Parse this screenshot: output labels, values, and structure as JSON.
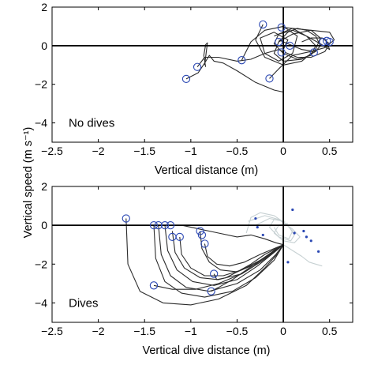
{
  "shared_ylabel": "Vertical speed (m s⁻¹)",
  "chart_data": [
    {
      "type": "line",
      "panel_label": "No dives",
      "xlabel": "Vertical distance (m)",
      "xlim": [
        -2.5,
        0.75
      ],
      "ylim": [
        -5,
        2
      ],
      "xticks": [
        -2.5,
        -2,
        -1.5,
        -1,
        -0.5,
        0,
        0.5
      ],
      "yticks": [
        -4,
        -2,
        0,
        2
      ],
      "xtick_labels": [
        "−2.5",
        "−2",
        "−1.5",
        "−1",
        "−0.5",
        "0",
        "0.5"
      ],
      "ytick_labels": [
        "−4",
        "−2",
        "0",
        "2"
      ],
      "reference_lines": {
        "x": 0,
        "y": 0
      },
      "trajectories": [
        {
          "x": [
            -1.05,
            -0.92,
            -0.85,
            -0.8,
            -0.75,
            -0.65,
            -0.5,
            -0.3,
            -0.1,
            0.0
          ],
          "y": [
            -1.72,
            -1.4,
            -0.9,
            -0.5,
            -0.8,
            -0.9,
            -1.3,
            -1.9,
            -2.3,
            -2.4
          ]
        },
        {
          "x": [
            -0.85,
            -0.83,
            -0.82,
            -0.84,
            -0.86,
            -0.84
          ],
          "y": [
            -1.0,
            -0.2,
            0.15,
            0.05,
            -0.5,
            -1.1
          ]
        },
        {
          "x": [
            -0.93,
            -0.85,
            -0.7,
            -0.5,
            -0.35,
            -0.2,
            -0.05,
            0.0
          ],
          "y": [
            -1.1,
            -0.6,
            -0.6,
            -0.8,
            -0.7,
            -0.4,
            -0.2,
            -0.3
          ]
        },
        {
          "x": [
            -0.45,
            -0.35,
            -0.2,
            0.0,
            0.15,
            0.1,
            -0.05,
            -0.2,
            -0.25,
            -0.1,
            0.05,
            0.0
          ],
          "y": [
            -0.75,
            0.2,
            0.8,
            1.0,
            0.5,
            -0.4,
            -0.8,
            -0.4,
            0.4,
            0.7,
            0.3,
            -0.2
          ]
        },
        {
          "x": [
            -0.22,
            -0.3,
            -0.2,
            0.0,
            0.2,
            0.35,
            0.4,
            0.3,
            0.1,
            -0.1
          ],
          "y": [
            1.1,
            0.3,
            -0.6,
            -1.0,
            -0.8,
            -0.2,
            0.4,
            0.8,
            0.9,
            0.5
          ]
        },
        {
          "x": [
            -0.15,
            -0.05,
            0.1,
            0.3,
            0.45,
            0.55,
            0.5,
            0.3,
            0.1,
            -0.05,
            -0.1,
            0.0,
            0.2,
            0.35
          ],
          "y": [
            -1.7,
            -1.2,
            -0.5,
            -0.3,
            -0.1,
            0.3,
            0.7,
            0.8,
            0.6,
            0.2,
            -0.4,
            -0.8,
            -0.7,
            -0.3
          ]
        },
        {
          "x": [
            0.0,
            0.1,
            0.25,
            0.35,
            0.3,
            0.15,
            0.0,
            -0.1,
            -0.05,
            0.1,
            0.25,
            0.4,
            0.5,
            0.47
          ],
          "y": [
            0.95,
            0.9,
            0.5,
            0.0,
            -0.5,
            -0.7,
            -0.4,
            0.1,
            0.6,
            0.8,
            0.5,
            0.1,
            -0.2,
            0.2
          ]
        },
        {
          "x": [
            0.02,
            0.15,
            0.3,
            0.45,
            0.5,
            0.42,
            0.3,
            0.2
          ],
          "y": [
            -0.35,
            -0.6,
            -0.6,
            -0.3,
            0.1,
            0.4,
            0.4,
            0.2
          ]
        },
        {
          "x": [
            -0.05,
            0.05,
            0.15,
            0.25,
            0.35,
            0.4,
            0.35,
            0.2,
            0.05,
            -0.05
          ],
          "y": [
            0.2,
            0.7,
            0.9,
            0.8,
            0.5,
            0.0,
            -0.3,
            -0.2,
            0.1,
            0.3
          ]
        }
      ],
      "markers": [
        {
          "x": -1.05,
          "y": -1.72
        },
        {
          "x": -0.93,
          "y": -1.1
        },
        {
          "x": -0.45,
          "y": -0.75
        },
        {
          "x": -0.22,
          "y": 1.1
        },
        {
          "x": -0.15,
          "y": -1.7
        },
        {
          "x": -0.02,
          "y": 0.95
        },
        {
          "x": -0.05,
          "y": 0.2
        },
        {
          "x": -0.02,
          "y": -0.35
        },
        {
          "x": 0.07,
          "y": 0.0
        },
        {
          "x": 0.33,
          "y": -0.35
        },
        {
          "x": 0.43,
          "y": 0.2
        },
        {
          "x": 0.47,
          "y": 0.25
        },
        {
          "x": 0.5,
          "y": 0.2
        }
      ]
    },
    {
      "type": "line",
      "panel_label": "Dives",
      "xlabel": "Vertical dive distance (m)",
      "xlim": [
        -2.5,
        0.75
      ],
      "ylim": [
        -5,
        2
      ],
      "xticks": [
        -2.5,
        -2,
        -1.5,
        -1,
        -0.5,
        0,
        0.5
      ],
      "yticks": [
        -4,
        -2,
        0,
        2
      ],
      "xtick_labels": [
        "−2.5",
        "−2",
        "−1.5",
        "−1",
        "−0.5",
        "0",
        "0.5"
      ],
      "ytick_labels": [
        "−4",
        "−2",
        "0",
        "2"
      ],
      "reference_lines": {
        "x": 0,
        "y": 0
      },
      "trajectories": [
        {
          "x": [
            -1.7,
            -1.68,
            -1.55,
            -1.3,
            -1.0,
            -0.7,
            -0.4,
            -0.2,
            -0.05,
            0.0
          ],
          "y": [
            0.35,
            -2.0,
            -3.4,
            -4.0,
            -4.1,
            -3.8,
            -3.1,
            -2.2,
            -1.4,
            -1.0
          ]
        },
        {
          "x": [
            -1.4,
            -1.38,
            -1.28,
            -1.1,
            -0.85,
            -0.55,
            -0.3,
            -0.1,
            0.0
          ],
          "y": [
            0.0,
            -1.7,
            -2.9,
            -3.5,
            -3.7,
            -3.4,
            -2.7,
            -1.8,
            -1.0
          ]
        },
        {
          "x": [
            -1.35,
            -1.32,
            -1.22,
            -1.05,
            -0.8,
            -0.5,
            -0.25,
            -0.08,
            0.0
          ],
          "y": [
            0.0,
            -1.5,
            -2.6,
            -3.2,
            -3.4,
            -3.0,
            -2.3,
            -1.5,
            -1.0
          ]
        },
        {
          "x": [
            -1.28,
            -1.25,
            -1.15,
            -0.98,
            -0.75,
            -0.5,
            -0.28,
            -0.1,
            0.0
          ],
          "y": [
            0.0,
            -1.3,
            -2.3,
            -2.9,
            -3.1,
            -2.8,
            -2.1,
            -1.4,
            -1.0
          ]
        },
        {
          "x": [
            -1.2,
            -1.17,
            -1.07,
            -0.9,
            -0.7,
            -0.45,
            -0.25,
            -0.08,
            0.0
          ],
          "y": [
            -0.3,
            -1.4,
            -2.2,
            -2.7,
            -2.8,
            -2.5,
            -1.9,
            -1.3,
            -1.0
          ]
        },
        {
          "x": [
            -1.12,
            -1.1,
            -1.0,
            -0.85,
            -0.65,
            -0.45,
            -0.25,
            -0.08,
            0.0
          ],
          "y": [
            -0.6,
            -1.5,
            -2.2,
            -2.6,
            -2.6,
            -2.3,
            -1.8,
            -1.3,
            -1.0
          ]
        },
        {
          "x": [
            -0.9,
            -0.88,
            -0.8,
            -0.68,
            -0.5,
            -0.3,
            -0.15,
            0.0
          ],
          "y": [
            -0.3,
            -1.2,
            -1.9,
            -2.3,
            -2.4,
            -2.0,
            -1.5,
            -1.0
          ]
        },
        {
          "x": [
            -0.85,
            -0.82,
            -0.72,
            -0.58,
            -0.42,
            -0.25,
            -0.1,
            0.0
          ],
          "y": [
            -0.95,
            -1.6,
            -2.0,
            -2.1,
            -1.9,
            -1.5,
            -1.2,
            -1.0
          ]
        },
        {
          "x": [
            -0.75,
            -0.72,
            -0.62,
            -0.5,
            -0.35,
            -0.2,
            -0.08,
            0.0
          ],
          "y": [
            -2.5,
            -2.8,
            -2.7,
            -2.4,
            -2.0,
            -1.5,
            -1.2,
            -1.0
          ]
        },
        {
          "x": [
            -0.78,
            -0.7,
            -0.55,
            -0.4,
            -0.25,
            -0.1,
            0.0
          ],
          "y": [
            -3.4,
            -3.2,
            -2.8,
            -2.3,
            -1.8,
            -1.3,
            -1.0
          ]
        },
        {
          "x": [
            -1.4,
            -1.2,
            -0.95,
            -0.7,
            -0.45,
            -0.25,
            -0.1,
            0.0
          ],
          "y": [
            -3.1,
            -3.3,
            -3.3,
            -3.0,
            -2.5,
            -1.9,
            -1.4,
            -1.0
          ]
        },
        {
          "x": [
            -1.42,
            -1.1,
            -0.9,
            -0.7,
            -0.5,
            -0.35,
            -0.2,
            -0.08,
            0.0
          ],
          "y": [
            0.0,
            0.0,
            -0.2,
            -0.4,
            -0.6,
            -0.5,
            -0.7,
            -0.9,
            -1.0
          ]
        }
      ],
      "faded_trajectories": [
        {
          "x": [
            -0.4,
            -0.35,
            -0.25,
            -0.1,
            0.05,
            0.12,
            0.08,
            -0.05,
            -0.15,
            -0.1,
            0.02
          ],
          "y": [
            -0.4,
            0.4,
            0.65,
            0.5,
            0.0,
            -0.5,
            -0.8,
            -0.6,
            -0.1,
            0.3,
            0.2
          ]
        },
        {
          "x": [
            -0.38,
            -0.2,
            -0.05,
            0.1,
            0.18,
            0.12,
            0.0,
            -0.1,
            -0.05,
            0.05
          ],
          "y": [
            0.2,
            0.5,
            0.3,
            -0.2,
            -0.6,
            -0.9,
            -0.8,
            -0.4,
            0.0,
            0.1
          ]
        },
        {
          "x": [
            -0.3,
            -0.15,
            0.0,
            0.1,
            0.06,
            -0.05,
            -0.1
          ],
          "y": [
            0.0,
            0.35,
            0.2,
            -0.3,
            -0.7,
            -0.5,
            -0.1
          ]
        },
        {
          "x": [
            0.0,
            0.1,
            0.2,
            0.28,
            0.35,
            0.42
          ],
          "y": [
            -1.0,
            -1.3,
            -1.6,
            -1.9,
            -2.0,
            -2.1
          ]
        }
      ],
      "markers": [
        {
          "x": -1.7,
          "y": 0.35
        },
        {
          "x": -1.4,
          "y": 0.0
        },
        {
          "x": -1.35,
          "y": 0.0
        },
        {
          "x": -1.28,
          "y": 0.0
        },
        {
          "x": -1.22,
          "y": 0.0
        },
        {
          "x": -1.2,
          "y": -0.6
        },
        {
          "x": -1.12,
          "y": -0.6
        },
        {
          "x": -0.9,
          "y": -0.3
        },
        {
          "x": -0.88,
          "y": -0.5
        },
        {
          "x": -0.85,
          "y": -0.95
        },
        {
          "x": -0.75,
          "y": -2.5
        },
        {
          "x": -0.78,
          "y": -3.4
        },
        {
          "x": -1.4,
          "y": -3.1
        }
      ],
      "dots": [
        {
          "x": -0.3,
          "y": 0.35
        },
        {
          "x": -0.28,
          "y": -0.1
        },
        {
          "x": -0.22,
          "y": -0.5
        },
        {
          "x": 0.05,
          "y": -1.9
        },
        {
          "x": 0.12,
          "y": -0.4
        },
        {
          "x": 0.22,
          "y": -0.3
        },
        {
          "x": 0.25,
          "y": -0.6
        },
        {
          "x": 0.3,
          "y": -0.8
        },
        {
          "x": 0.38,
          "y": -1.35
        },
        {
          "x": 0.1,
          "y": 0.8
        }
      ]
    }
  ],
  "colors": {
    "trace": "#2b2b2b",
    "faded_trace": "#c7d1d3",
    "marker": "#2a47b3",
    "axes": "#000000"
  }
}
